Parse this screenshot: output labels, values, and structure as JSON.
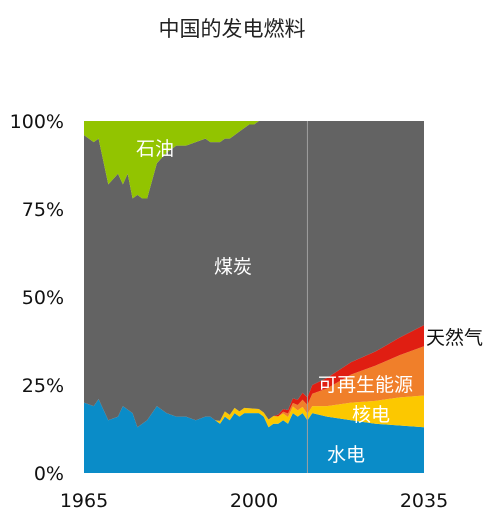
{
  "chart_data": {
    "type": "area",
    "stacked": true,
    "normalized": true,
    "title": "中国的发电燃料",
    "xlabel": "",
    "ylabel": "",
    "xlim": [
      1965,
      2035
    ],
    "ylim": [
      0,
      100
    ],
    "x_ticks": [
      "1965",
      "2000",
      "2035"
    ],
    "y_ticks": [
      "0%",
      "25%",
      "50%",
      "75%",
      "100%"
    ],
    "grid": false,
    "legend": "none",
    "history_end_marker_x": 2011,
    "x": [
      1965,
      1967,
      1968,
      1970,
      1972,
      1973,
      1974,
      1975,
      1976,
      1977,
      1978,
      1980,
      1982,
      1984,
      1986,
      1988,
      1990,
      1991,
      1992,
      1993,
      1994,
      1995,
      1996,
      1997,
      1998,
      1999,
      2000,
      2001,
      2002,
      2003,
      2004,
      2005,
      2006,
      2007,
      2008,
      2009,
      2010,
      2011,
      2012,
      2015,
      2020,
      2025,
      2030,
      2035
    ],
    "series": [
      {
        "name": "水电",
        "color": "#0a8cc8",
        "values": [
          20,
          19,
          21,
          15,
          16,
          19,
          18,
          17,
          13,
          14,
          15,
          19,
          17,
          16,
          16,
          15,
          16,
          16,
          15,
          14,
          16,
          15,
          17,
          16,
          17,
          17,
          17,
          17,
          16,
          13,
          14,
          14,
          15,
          14,
          17,
          16,
          17,
          15,
          17,
          16,
          15,
          14,
          13.5,
          13
        ]
      },
      {
        "name": "核电",
        "color": "#fcc800",
        "values": [
          0,
          0,
          0,
          0,
          0,
          0,
          0,
          0,
          0,
          0,
          0,
          0,
          0,
          0,
          0,
          0,
          0,
          0,
          0,
          0.8,
          1.5,
          1.5,
          1.5,
          1.5,
          1.5,
          1.4,
          1.3,
          1.2,
          1.2,
          2.2,
          2.2,
          2.1,
          1.9,
          1.9,
          1.9,
          1.8,
          1.8,
          1.8,
          2,
          3,
          5,
          6.5,
          8,
          9
        ]
      },
      {
        "name": "可再生能源",
        "color": "#f07f2a",
        "values": [
          0,
          0,
          0,
          0,
          0,
          0,
          0,
          0,
          0,
          0,
          0,
          0,
          0,
          0,
          0,
          0,
          0,
          0,
          0,
          0,
          0,
          0,
          0,
          0,
          0,
          0,
          0,
          0,
          0,
          0,
          0,
          0,
          0.5,
          1,
          1,
          1.5,
          2,
          2.5,
          3.5,
          5,
          8,
          10,
          12,
          14
        ]
      },
      {
        "name": "天然气",
        "color": "#e01e12",
        "values": [
          0,
          0,
          0,
          0,
          0,
          0,
          0,
          0,
          0,
          0,
          0,
          0,
          0,
          0,
          0,
          0,
          0,
          0,
          0,
          0,
          0,
          0,
          0,
          0,
          0,
          0,
          0,
          0,
          0,
          0,
          0,
          0.5,
          0.8,
          1,
          1.3,
          1.5,
          2,
          2.2,
          2.5,
          3,
          3.5,
          4,
          5,
          6
        ]
      },
      {
        "name": "煤炭",
        "color": "#636363",
        "values": [
          76,
          75,
          74,
          67,
          69,
          63,
          67,
          61,
          66,
          64,
          63,
          69,
          74,
          77,
          77,
          79,
          79,
          78,
          79,
          79.2,
          77.5,
          78.5,
          77.5,
          79.5,
          79.5,
          80.6,
          80.7,
          81.8,
          82.8,
          84.8,
          83.8,
          83.4,
          81.8,
          82.1,
          78.8,
          79.2,
          77.2,
          78.5,
          75,
          73,
          68.5,
          65.5,
          61.5,
          58
        ]
      },
      {
        "name": "石油",
        "color": "#92c400",
        "values": [
          4,
          6,
          5,
          18,
          15,
          18,
          15,
          22,
          21,
          22,
          22,
          12,
          9,
          7,
          7,
          6,
          5,
          6,
          6,
          6,
          5,
          5,
          4,
          3,
          2,
          1,
          1,
          0,
          0,
          0,
          0,
          0,
          0,
          0,
          0,
          0,
          0,
          0,
          0,
          0,
          0,
          0,
          0,
          0
        ]
      }
    ],
    "labels": {
      "oil": "石油",
      "coal": "煤炭",
      "gas": "天然气",
      "renewables": "可再生能源",
      "nuclear": "核电",
      "hydro": "水电"
    }
  }
}
